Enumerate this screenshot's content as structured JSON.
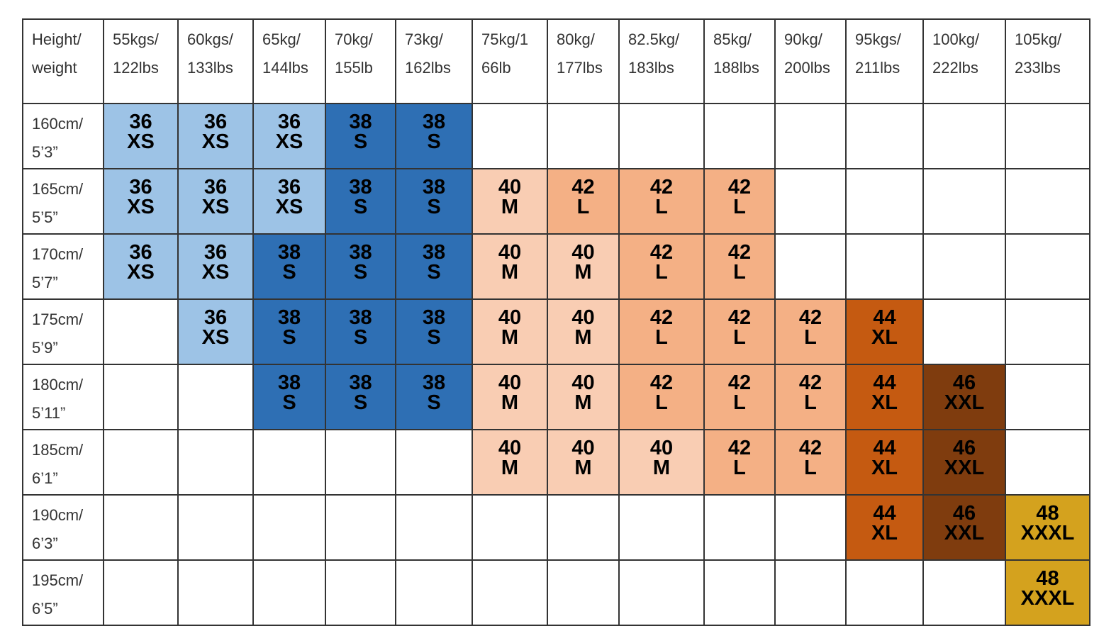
{
  "table": {
    "colors": {
      "XS": "#9dc3e6",
      "S": "#2e6fb4",
      "M": "#f9cdb3",
      "L": "#f4b085",
      "XL": "#c55a11",
      "XXL": "#7f3c0e",
      "XXXL": "#d4a21e"
    },
    "header": [
      [
        "Height/",
        "weight"
      ],
      [
        "55kgs/",
        "122lbs"
      ],
      [
        "60kgs/",
        "133lbs"
      ],
      [
        "65kg/",
        "144lbs"
      ],
      [
        "70kg/",
        "155lb"
      ],
      [
        "73kg/",
        "162lbs"
      ],
      [
        "75kg/1",
        "66lb"
      ],
      [
        "80kg/",
        "177lbs"
      ],
      [
        "82.5kg/",
        "183lbs"
      ],
      [
        "85kg/",
        "188lbs"
      ],
      [
        "90kg/",
        "200lbs"
      ],
      [
        "95kgs/",
        "211lbs"
      ],
      [
        "100kg/",
        "222lbs"
      ],
      [
        "105kg/",
        "233lbs"
      ]
    ],
    "rows": [
      {
        "height": [
          "160cm/",
          "5’3”"
        ],
        "cells": [
          {
            "size": 36,
            "label": "XS"
          },
          {
            "size": 36,
            "label": "XS"
          },
          {
            "size": 36,
            "label": "XS"
          },
          {
            "size": 38,
            "label": "S"
          },
          {
            "size": 38,
            "label": "S"
          },
          null,
          null,
          null,
          null,
          null,
          null,
          null,
          null
        ]
      },
      {
        "height": [
          "165cm/",
          "5’5”"
        ],
        "cells": [
          {
            "size": 36,
            "label": "XS"
          },
          {
            "size": 36,
            "label": "XS"
          },
          {
            "size": 36,
            "label": "XS"
          },
          {
            "size": 38,
            "label": "S"
          },
          {
            "size": 38,
            "label": "S"
          },
          {
            "size": 40,
            "label": "M"
          },
          {
            "size": 42,
            "label": "L"
          },
          {
            "size": 42,
            "label": "L"
          },
          {
            "size": 42,
            "label": "L"
          },
          null,
          null,
          null,
          null
        ]
      },
      {
        "height": [
          "170cm/",
          "5’7”"
        ],
        "cells": [
          {
            "size": 36,
            "label": "XS"
          },
          {
            "size": 36,
            "label": "XS"
          },
          {
            "size": 38,
            "label": "S"
          },
          {
            "size": 38,
            "label": "S"
          },
          {
            "size": 38,
            "label": "S"
          },
          {
            "size": 40,
            "label": "M"
          },
          {
            "size": 40,
            "label": "M"
          },
          {
            "size": 42,
            "label": "L"
          },
          {
            "size": 42,
            "label": "L"
          },
          null,
          null,
          null,
          null
        ]
      },
      {
        "height": [
          "175cm/",
          "5’9”"
        ],
        "cells": [
          null,
          {
            "size": 36,
            "label": "XS"
          },
          {
            "size": 38,
            "label": "S"
          },
          {
            "size": 38,
            "label": "S"
          },
          {
            "size": 38,
            "label": "S"
          },
          {
            "size": 40,
            "label": "M"
          },
          {
            "size": 40,
            "label": "M"
          },
          {
            "size": 42,
            "label": "L"
          },
          {
            "size": 42,
            "label": "L"
          },
          {
            "size": 42,
            "label": "L"
          },
          {
            "size": 44,
            "label": "XL"
          },
          null,
          null
        ]
      },
      {
        "height": [
          "180cm/",
          "5’11”"
        ],
        "cells": [
          null,
          null,
          {
            "size": 38,
            "label": "S"
          },
          {
            "size": 38,
            "label": "S"
          },
          {
            "size": 38,
            "label": "S"
          },
          {
            "size": 40,
            "label": "M"
          },
          {
            "size": 40,
            "label": "M"
          },
          {
            "size": 42,
            "label": "L"
          },
          {
            "size": 42,
            "label": "L"
          },
          {
            "size": 42,
            "label": "L"
          },
          {
            "size": 44,
            "label": "XL"
          },
          {
            "size": 46,
            "label": "XXL"
          },
          null
        ]
      },
      {
        "height": [
          "185cm/",
          "6’1”"
        ],
        "cells": [
          null,
          null,
          null,
          null,
          null,
          {
            "size": 40,
            "label": "M"
          },
          {
            "size": 40,
            "label": "M"
          },
          {
            "size": 40,
            "label": "M"
          },
          {
            "size": 42,
            "label": "L"
          },
          {
            "size": 42,
            "label": "L"
          },
          {
            "size": 44,
            "label": "XL"
          },
          {
            "size": 46,
            "label": "XXL"
          },
          null
        ]
      },
      {
        "height": [
          "190cm/",
          "6’3”"
        ],
        "cells": [
          null,
          null,
          null,
          null,
          null,
          null,
          null,
          null,
          null,
          null,
          {
            "size": 44,
            "label": "XL"
          },
          {
            "size": 46,
            "label": "XXL"
          },
          {
            "size": 48,
            "label": "XXXL"
          }
        ]
      },
      {
        "height": [
          "195cm/",
          "6’5”"
        ],
        "cells": [
          null,
          null,
          null,
          null,
          null,
          null,
          null,
          null,
          null,
          null,
          null,
          null,
          {
            "size": 48,
            "label": "XXXL"
          }
        ]
      }
    ]
  }
}
